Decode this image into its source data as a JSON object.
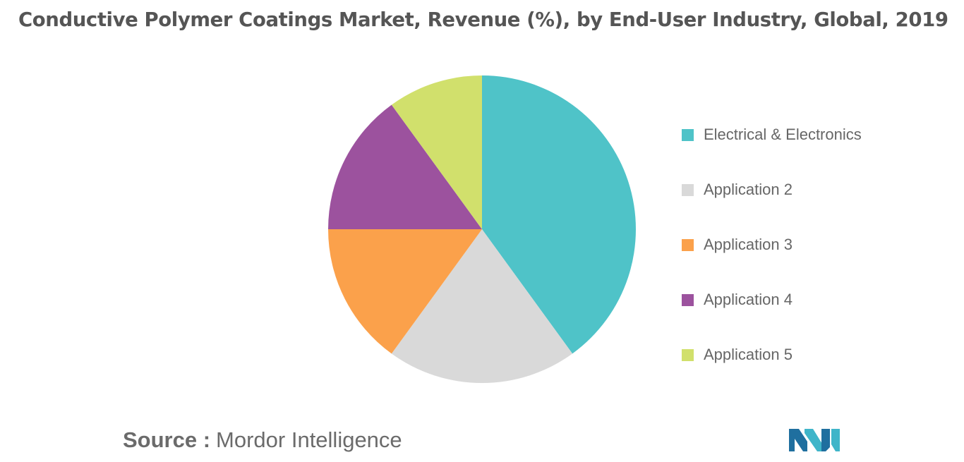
{
  "chart_data": {
    "type": "pie",
    "title": "Conductive Polymer Coatings Market, Revenue (%), by End-User Industry, Global, 2019",
    "categories": [
      "Electrical & Electronics",
      "Application 2",
      "Application 3",
      "Application 4",
      "Application 5"
    ],
    "values": [
      40,
      20,
      15,
      15,
      10
    ],
    "colors": [
      "#4fc3c8",
      "#d9d9d9",
      "#fba14b",
      "#9c529e",
      "#d1e06c"
    ],
    "legend_position": "right"
  },
  "source": {
    "label": "Source :",
    "name": "Mordor Intelligence"
  },
  "logo": {
    "icon": "mordor-intelligence-logo-icon",
    "colors": [
      "#1f6f9f",
      "#3fb5c9"
    ]
  }
}
